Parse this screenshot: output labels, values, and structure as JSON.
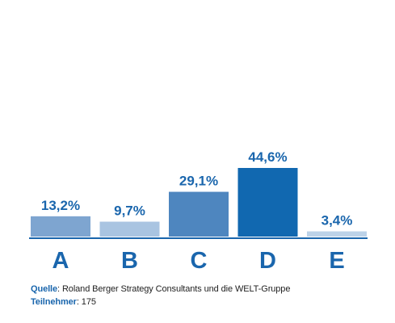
{
  "chart_data": {
    "type": "bar",
    "categories": [
      "A",
      "B",
      "C",
      "D",
      "E"
    ],
    "values": [
      13.2,
      9.7,
      29.1,
      44.6,
      3.4
    ],
    "value_labels": [
      "13,2%",
      "9,7%",
      "29,1%",
      "44,6%",
      "3,4%"
    ],
    "colors": [
      "#7ea5d0",
      "#a9c4e1",
      "#4e86bf",
      "#1168b0",
      "#bcd2e8"
    ],
    "label_color": "#1a66ad",
    "grid": false,
    "ylim": [
      0,
      50
    ]
  },
  "footer": {
    "source_label": "Quelle",
    "source_text": "Roland Berger Strategy Consultants und die WELT-Gruppe",
    "participants_label": "Teilnehmer",
    "participants_text": "175"
  }
}
